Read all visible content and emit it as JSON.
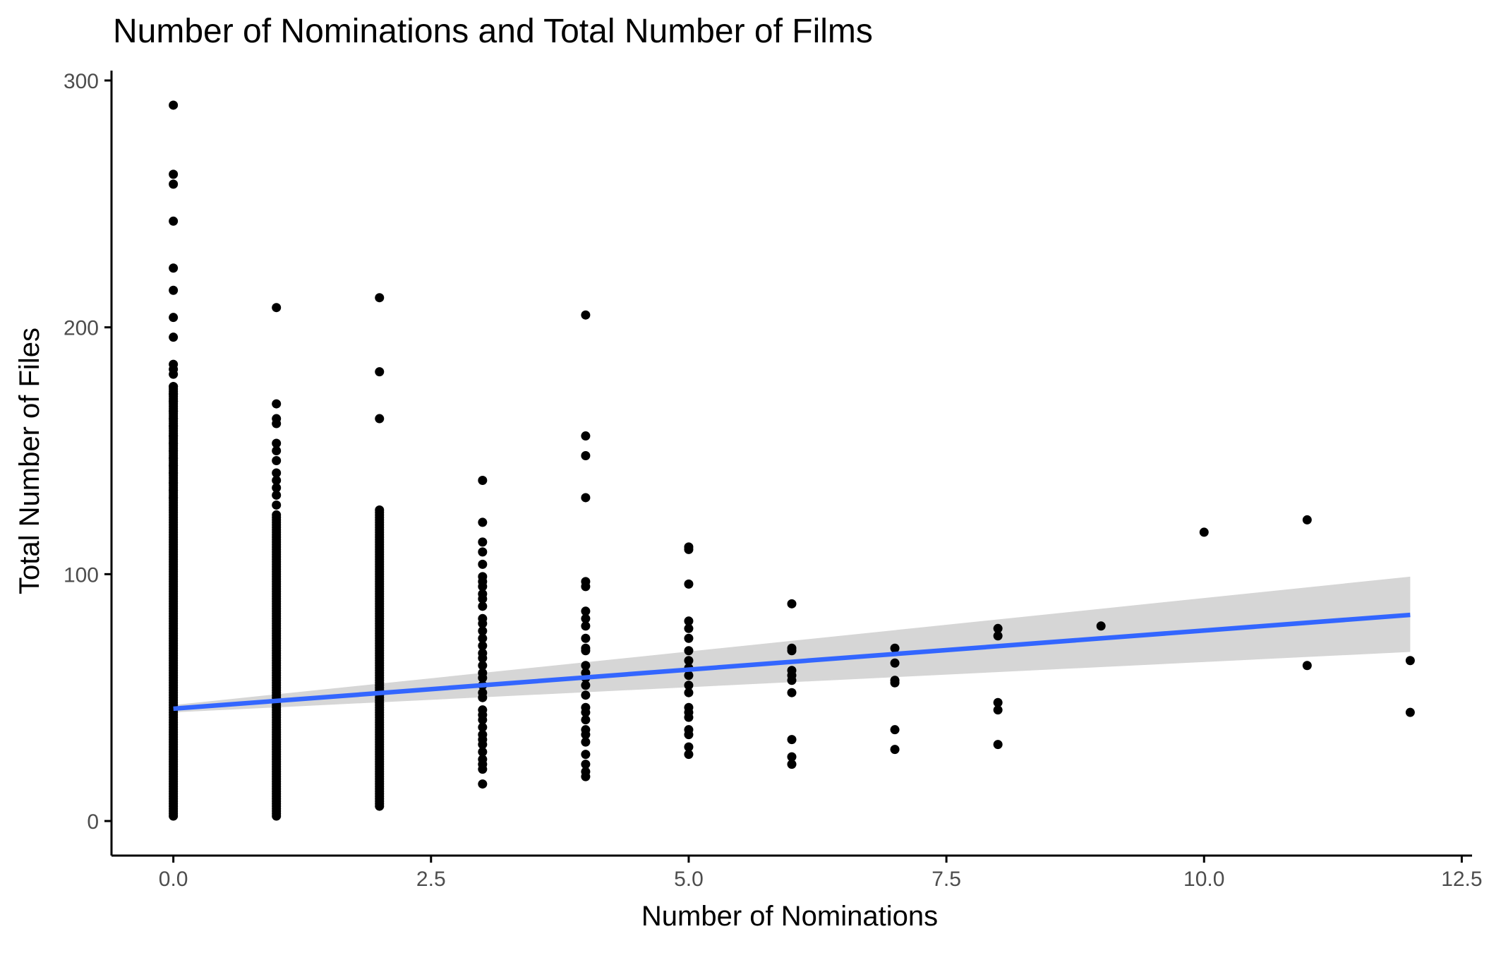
{
  "chart_data": {
    "type": "scatter",
    "title": "Number of Nominations and Total Number of Films",
    "xlabel": "Number of Nominations",
    "ylabel": "Total Number of Files",
    "xlim": [
      -0.6,
      12.6
    ],
    "ylim": [
      -14,
      304
    ],
    "x_ticks": [
      0.0,
      2.5,
      5.0,
      7.5,
      10.0,
      12.5
    ],
    "x_tick_labels": [
      "0.0",
      "2.5",
      "5.0",
      "7.5",
      "10.0",
      "12.5"
    ],
    "y_ticks": [
      0,
      100,
      200,
      300
    ],
    "y_tick_labels": [
      "0",
      "100",
      "200",
      "300"
    ],
    "grid": false,
    "legend": "none",
    "colors": {
      "points": "#000000",
      "trend": "#3366ff",
      "band": "#d6d6d6",
      "axis": "#000000"
    },
    "dense_columns": [
      {
        "x": 0,
        "from": 2,
        "to": 176
      },
      {
        "x": 1,
        "from": 2,
        "to": 124
      },
      {
        "x": 2,
        "from": 6,
        "to": 126
      }
    ],
    "points": [
      {
        "x": 0,
        "y": 290
      },
      {
        "x": 0,
        "y": 262
      },
      {
        "x": 0,
        "y": 258
      },
      {
        "x": 0,
        "y": 243
      },
      {
        "x": 0,
        "y": 224
      },
      {
        "x": 0,
        "y": 215
      },
      {
        "x": 0,
        "y": 204
      },
      {
        "x": 0,
        "y": 196
      },
      {
        "x": 0,
        "y": 185
      },
      {
        "x": 0,
        "y": 183
      },
      {
        "x": 0,
        "y": 181
      },
      {
        "x": 0,
        "y": 176
      },
      {
        "x": 0,
        "y": 173
      },
      {
        "x": 0,
        "y": 170
      },
      {
        "x": 0,
        "y": 166
      },
      {
        "x": 0,
        "y": 163
      },
      {
        "x": 0,
        "y": 160
      },
      {
        "x": 0,
        "y": 156
      },
      {
        "x": 0,
        "y": 153
      },
      {
        "x": 0,
        "y": 150
      },
      {
        "x": 0,
        "y": 147
      },
      {
        "x": 0,
        "y": 144
      },
      {
        "x": 0,
        "y": 141
      },
      {
        "x": 0,
        "y": 137
      },
      {
        "x": 0,
        "y": 134
      },
      {
        "x": 0,
        "y": 131
      },
      {
        "x": 1,
        "y": 208
      },
      {
        "x": 1,
        "y": 169
      },
      {
        "x": 1,
        "y": 163
      },
      {
        "x": 1,
        "y": 161
      },
      {
        "x": 1,
        "y": 153
      },
      {
        "x": 1,
        "y": 150
      },
      {
        "x": 1,
        "y": 146
      },
      {
        "x": 1,
        "y": 141
      },
      {
        "x": 1,
        "y": 138
      },
      {
        "x": 1,
        "y": 135
      },
      {
        "x": 1,
        "y": 132
      },
      {
        "x": 1,
        "y": 128
      },
      {
        "x": 2,
        "y": 212
      },
      {
        "x": 2,
        "y": 182
      },
      {
        "x": 2,
        "y": 163
      },
      {
        "x": 3,
        "y": 138
      },
      {
        "x": 3,
        "y": 121
      },
      {
        "x": 3,
        "y": 113
      },
      {
        "x": 3,
        "y": 109
      },
      {
        "x": 3,
        "y": 104
      },
      {
        "x": 3,
        "y": 99
      },
      {
        "x": 3,
        "y": 97
      },
      {
        "x": 3,
        "y": 95
      },
      {
        "x": 3,
        "y": 92
      },
      {
        "x": 3,
        "y": 90
      },
      {
        "x": 3,
        "y": 87
      },
      {
        "x": 3,
        "y": 82
      },
      {
        "x": 3,
        "y": 80
      },
      {
        "x": 3,
        "y": 77
      },
      {
        "x": 3,
        "y": 74
      },
      {
        "x": 3,
        "y": 71
      },
      {
        "x": 3,
        "y": 68
      },
      {
        "x": 3,
        "y": 66
      },
      {
        "x": 3,
        "y": 63
      },
      {
        "x": 3,
        "y": 60
      },
      {
        "x": 3,
        "y": 58
      },
      {
        "x": 3,
        "y": 55
      },
      {
        "x": 3,
        "y": 52
      },
      {
        "x": 3,
        "y": 50
      },
      {
        "x": 3,
        "y": 45
      },
      {
        "x": 3,
        "y": 43
      },
      {
        "x": 3,
        "y": 41
      },
      {
        "x": 3,
        "y": 38
      },
      {
        "x": 3,
        "y": 35
      },
      {
        "x": 3,
        "y": 33
      },
      {
        "x": 3,
        "y": 31
      },
      {
        "x": 3,
        "y": 28
      },
      {
        "x": 3,
        "y": 25
      },
      {
        "x": 3,
        "y": 23
      },
      {
        "x": 3,
        "y": 21
      },
      {
        "x": 3,
        "y": 15
      },
      {
        "x": 4,
        "y": 205
      },
      {
        "x": 4,
        "y": 156
      },
      {
        "x": 4,
        "y": 148
      },
      {
        "x": 4,
        "y": 131
      },
      {
        "x": 4,
        "y": 97
      },
      {
        "x": 4,
        "y": 95
      },
      {
        "x": 4,
        "y": 85
      },
      {
        "x": 4,
        "y": 82
      },
      {
        "x": 4,
        "y": 79
      },
      {
        "x": 4,
        "y": 74
      },
      {
        "x": 4,
        "y": 70
      },
      {
        "x": 4,
        "y": 69
      },
      {
        "x": 4,
        "y": 63
      },
      {
        "x": 4,
        "y": 60
      },
      {
        "x": 4,
        "y": 58
      },
      {
        "x": 4,
        "y": 55
      },
      {
        "x": 4,
        "y": 51
      },
      {
        "x": 4,
        "y": 46
      },
      {
        "x": 4,
        "y": 44
      },
      {
        "x": 4,
        "y": 41
      },
      {
        "x": 4,
        "y": 37
      },
      {
        "x": 4,
        "y": 35
      },
      {
        "x": 4,
        "y": 32
      },
      {
        "x": 4,
        "y": 27
      },
      {
        "x": 4,
        "y": 23
      },
      {
        "x": 4,
        "y": 20
      },
      {
        "x": 4,
        "y": 18
      },
      {
        "x": 5,
        "y": 111
      },
      {
        "x": 5,
        "y": 110
      },
      {
        "x": 5,
        "y": 96
      },
      {
        "x": 5,
        "y": 81
      },
      {
        "x": 5,
        "y": 78
      },
      {
        "x": 5,
        "y": 74
      },
      {
        "x": 5,
        "y": 69
      },
      {
        "x": 5,
        "y": 65
      },
      {
        "x": 5,
        "y": 62
      },
      {
        "x": 5,
        "y": 59
      },
      {
        "x": 5,
        "y": 55
      },
      {
        "x": 5,
        "y": 52
      },
      {
        "x": 5,
        "y": 46
      },
      {
        "x": 5,
        "y": 44
      },
      {
        "x": 5,
        "y": 42
      },
      {
        "x": 5,
        "y": 37
      },
      {
        "x": 5,
        "y": 35
      },
      {
        "x": 5,
        "y": 30
      },
      {
        "x": 5,
        "y": 27
      },
      {
        "x": 6,
        "y": 88
      },
      {
        "x": 6,
        "y": 70
      },
      {
        "x": 6,
        "y": 69
      },
      {
        "x": 6,
        "y": 61
      },
      {
        "x": 6,
        "y": 59
      },
      {
        "x": 6,
        "y": 57
      },
      {
        "x": 6,
        "y": 52
      },
      {
        "x": 6,
        "y": 33
      },
      {
        "x": 6,
        "y": 26
      },
      {
        "x": 6,
        "y": 23
      },
      {
        "x": 7,
        "y": 70
      },
      {
        "x": 7,
        "y": 64
      },
      {
        "x": 7,
        "y": 57
      },
      {
        "x": 7,
        "y": 56
      },
      {
        "x": 7,
        "y": 37
      },
      {
        "x": 7,
        "y": 29
      },
      {
        "x": 8,
        "y": 78
      },
      {
        "x": 8,
        "y": 75
      },
      {
        "x": 8,
        "y": 48
      },
      {
        "x": 8,
        "y": 45
      },
      {
        "x": 8,
        "y": 31
      },
      {
        "x": 9,
        "y": 79
      },
      {
        "x": 10,
        "y": 117
      },
      {
        "x": 11,
        "y": 122
      },
      {
        "x": 11,
        "y": 63
      },
      {
        "x": 12,
        "y": 65
      },
      {
        "x": 12,
        "y": 44
      }
    ],
    "trend_line": {
      "method": "linear",
      "x": [
        0,
        12
      ],
      "y": [
        45.5,
        83.5
      ]
    },
    "confidence_band": {
      "x": [
        0,
        12
      ],
      "lower": [
        44,
        68.5
      ],
      "upper": [
        47,
        99
      ]
    }
  }
}
